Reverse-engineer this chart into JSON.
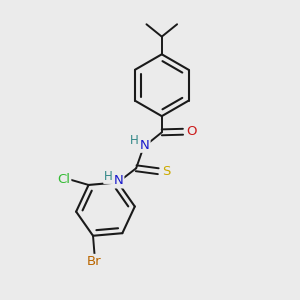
{
  "background_color": "#ebebeb",
  "bond_color": "#1a1a1a",
  "atom_colors": {
    "N": "#1a1acc",
    "O": "#cc1a1a",
    "S": "#ccaa00",
    "Cl": "#33bb33",
    "Br": "#bb6600",
    "H": "#338888",
    "C": "#1a1a1a"
  },
  "figsize": [
    3.0,
    3.0
  ],
  "dpi": 100
}
